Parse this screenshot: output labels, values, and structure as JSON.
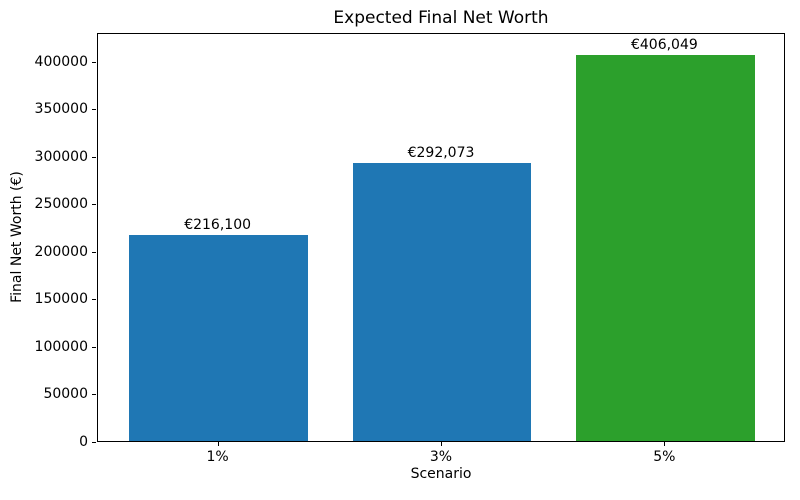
{
  "chart_data": {
    "type": "bar",
    "title": "Expected Final Net Worth",
    "xlabel": "Scenario",
    "ylabel": "Final Net Worth (€)",
    "categories": [
      "1%",
      "3%",
      "5%"
    ],
    "values": [
      216100,
      292073,
      406049
    ],
    "bar_labels": [
      "€216,100",
      "€292,073",
      "€406,049"
    ],
    "bar_colors": [
      "#1f77b4",
      "#1f77b4",
      "#2ca02c"
    ],
    "yticks": [
      0,
      50000,
      100000,
      150000,
      200000,
      250000,
      300000,
      350000,
      400000
    ],
    "ylim": [
      0,
      430000
    ],
    "grid": false,
    "legend": false,
    "background_color": "#ffffff",
    "spine_color": "#000000",
    "text_color": "#000000"
  }
}
